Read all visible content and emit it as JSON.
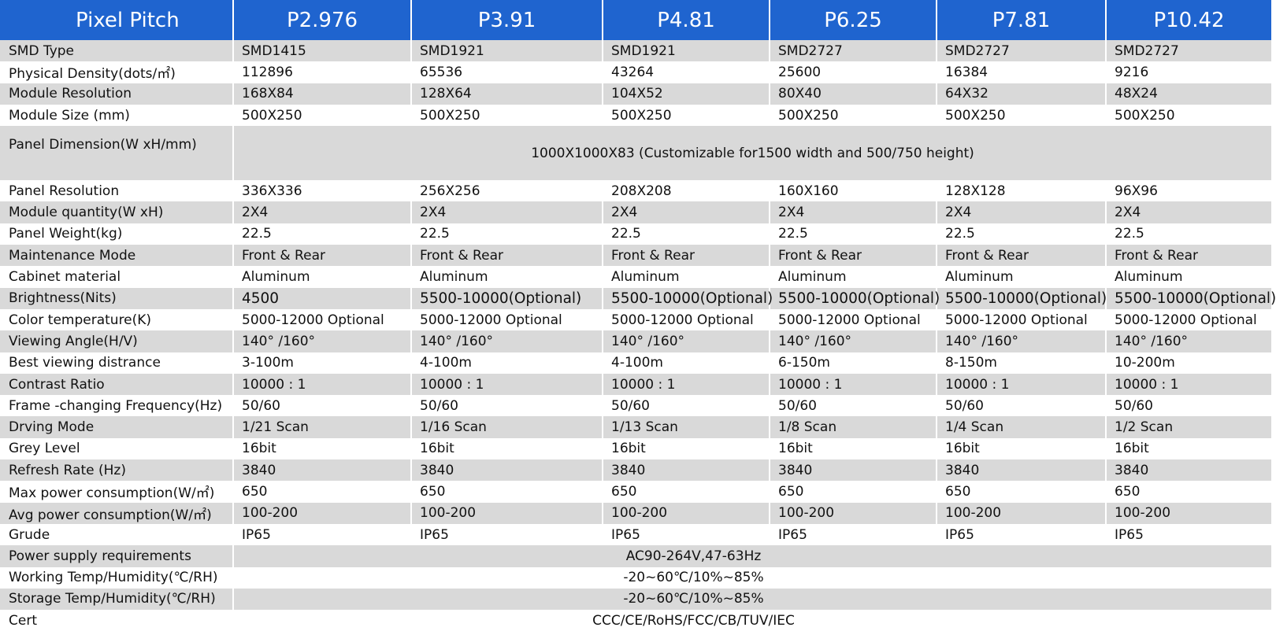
{
  "header": {
    "label": "Pixel Pitch",
    "columns": [
      "P2.976",
      "P3.91",
      "P4.81",
      "P6.25",
      "P7.81",
      "P10.42"
    ]
  },
  "rows": [
    {
      "label": "SMD Type",
      "values": [
        "SMD1415",
        "SMD1921",
        "SMD1921",
        "SMD2727",
        "SMD2727",
        "SMD2727"
      ]
    },
    {
      "label": "Physical Density(dots/㎡)",
      "values": [
        "112896",
        "65536",
        "43264",
        "25600",
        "16384",
        "9216"
      ]
    },
    {
      "label": "Module Resolution",
      "values": [
        "168X84",
        "128X64",
        "104X52",
        "80X40",
        "64X32",
        "48X24"
      ]
    },
    {
      "label": "Module Size (mm)",
      "values": [
        "500X250",
        "500X250",
        "500X250",
        "500X250",
        "500X250",
        "500X250"
      ]
    },
    {
      "label": "Panel Dimension(W xH/mm)",
      "span": "1000X1000X83 (Customizable for1500 width and 500/750 height)"
    },
    {
      "label": "Panel Resolution",
      "values": [
        "336X336",
        "256X256",
        "208X208",
        "160X160",
        "128X128",
        "96X96"
      ]
    },
    {
      "label": "Module quantity(W xH)",
      "values": [
        "2X4",
        "2X4",
        "2X4",
        "2X4",
        "2X4",
        "2X4"
      ]
    },
    {
      "label": "Panel Weight(kg)",
      "values": [
        "22.5",
        "22.5",
        "22.5",
        "22.5",
        "22.5",
        "22.5"
      ]
    },
    {
      "label": "Maintenance Mode",
      "values": [
        "Front & Rear",
        "Front & Rear",
        "Front & Rear",
        "Front & Rear",
        "Front & Rear",
        "Front & Rear"
      ]
    },
    {
      "label": "Cabinet material",
      "values": [
        "Aluminum",
        "Aluminum",
        "Aluminum",
        "Aluminum",
        "Aluminum",
        "Aluminum"
      ]
    },
    {
      "label": "Brightness(Nits)",
      "values": [
        "4500",
        "5500-10000(Optional)",
        "5500-10000(Optional)",
        "5500-10000(Optional)",
        "5500-10000(Optional)",
        "5500-10000(Optional)"
      ]
    },
    {
      "label": "Color temperature(K)",
      "values": [
        "5000-12000 Optional",
        "5000-12000 Optional",
        "5000-12000 Optional",
        "5000-12000 Optional",
        "5000-12000 Optional",
        "5000-12000 Optional"
      ]
    },
    {
      "label": "Viewing Angle(H/V)",
      "values": [
        "140° /160°",
        "140° /160°",
        "140° /160°",
        "140° /160°",
        "140° /160°",
        "140° /160°"
      ]
    },
    {
      "label": "Best viewing distrance",
      "values": [
        "3-100m",
        "4-100m",
        "4-100m",
        "6-150m",
        "8-150m",
        "10-200m"
      ]
    },
    {
      "label": "Contrast Ratio",
      "values": [
        "10000 : 1",
        "10000 : 1",
        "10000 : 1",
        "10000 : 1",
        "10000 : 1",
        "10000 : 1"
      ]
    },
    {
      "label": "Frame -changing  Frequency(Hz)",
      "values": [
        "50/60",
        "50/60",
        "50/60",
        "50/60",
        "50/60",
        "50/60"
      ]
    },
    {
      "label": "Drving Mode",
      "values": [
        "1/21 Scan",
        "1/16 Scan",
        "1/13 Scan",
        "1/8 Scan",
        "1/4 Scan",
        "1/2 Scan"
      ]
    },
    {
      "label": "Grey Level",
      "values": [
        "16bit",
        "16bit",
        "16bit",
        "16bit",
        "16bit",
        "16bit"
      ]
    },
    {
      "label": "Refresh Rate (Hz)",
      "values": [
        "3840",
        "3840",
        "3840",
        "3840",
        "3840",
        "3840"
      ]
    },
    {
      "label": "Max power consumption(W/㎡)",
      "values": [
        "650",
        "650",
        "650",
        "650",
        "650",
        "650"
      ]
    },
    {
      "label": "Avg power consumption(W/㎡)",
      "values": [
        "100-200",
        "100-200",
        "100-200",
        "100-200",
        "100-200",
        "100-200"
      ]
    },
    {
      "label": "Grude",
      "values": [
        "IP65",
        "IP65",
        "IP65",
        "IP65",
        "IP65",
        "IP65"
      ]
    },
    {
      "label": "Power supply requirements",
      "span": "AC90-264V,47-63Hz"
    },
    {
      "label": "Working Temp/Humidity(℃/RH)",
      "span": "-20~60℃/10%~85%"
    },
    {
      "label": "Storage Temp/Humidity(℃/RH)",
      "span": "-20~60℃/10%~85%"
    },
    {
      "label": "Cert",
      "span": "CCC/CE/RoHS/FCC/CB/TUV/IEC"
    }
  ]
}
